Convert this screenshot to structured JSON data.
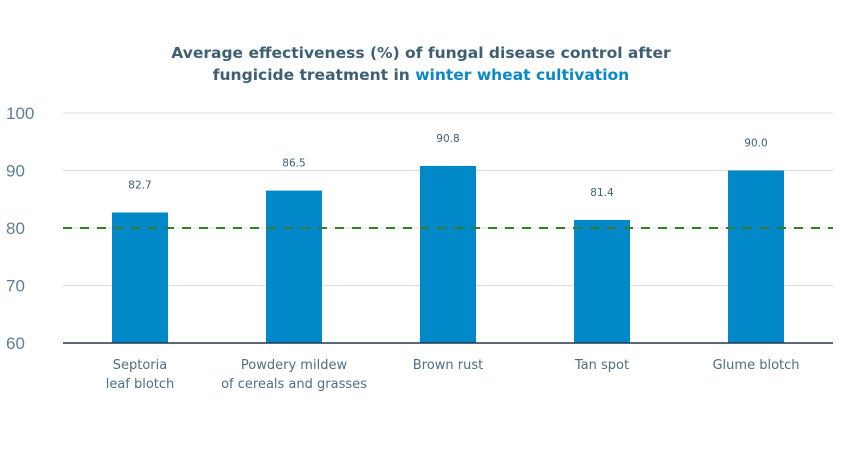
{
  "chart_data": {
    "type": "bar",
    "title_part1": "Average effectiveness (%) of fungal disease control after",
    "title_part2": "fungicide treatment in ",
    "title_highlight": "winter wheat cultivation",
    "categories": [
      [
        "Septoria",
        "leaf blotch"
      ],
      [
        "Powdery mildew",
        "of cereals and grasses"
      ],
      [
        "Brown rust"
      ],
      [
        "Tan spot"
      ],
      [
        "Glume blotch"
      ]
    ],
    "values": [
      82.7,
      86.5,
      90.8,
      81.4,
      90.0
    ],
    "value_labels": [
      "82.7",
      "86.5",
      "90.8",
      "81.4",
      "90.0"
    ],
    "ylim": [
      60,
      100
    ],
    "yticks": [
      100,
      90,
      80,
      70,
      60
    ],
    "ytick_labels": [
      "100",
      "90",
      "80",
      "70",
      "60"
    ],
    "reference_line": 80,
    "grid": true,
    "xlabel": "",
    "ylabel": "",
    "colors": {
      "bar": "#0088c9",
      "reference": "#3a7a2a",
      "grid": "#dcdcdc",
      "axis": "#1f3a4d",
      "title": "#3f5f73",
      "title_highlight": "#0a87c8"
    }
  }
}
